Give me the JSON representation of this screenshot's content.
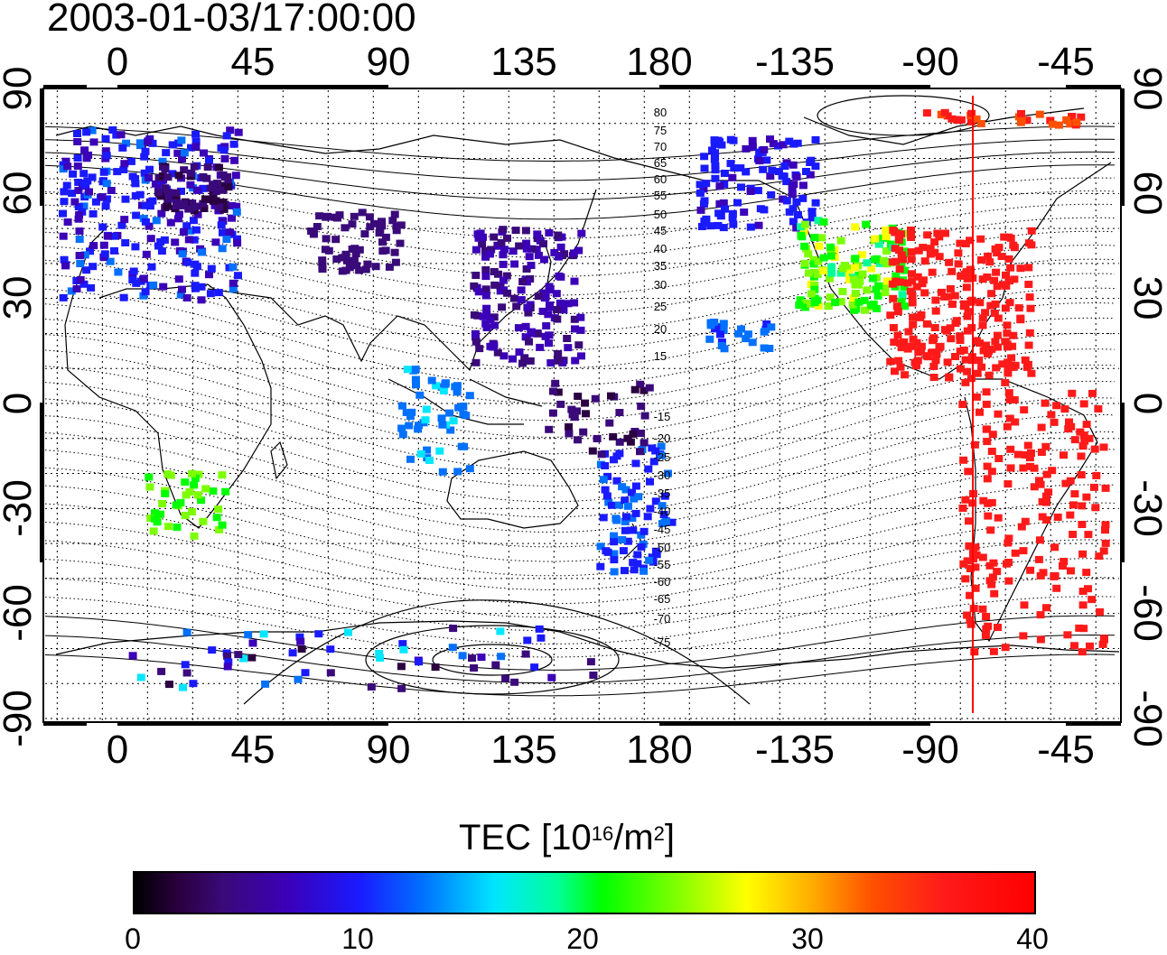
{
  "title": "2003-01-03/17:00:00",
  "map": {
    "lon_labels": [
      "0",
      "45",
      "90",
      "135",
      "180",
      "-135",
      "-90",
      "-45"
    ],
    "lat_labels": [
      "90",
      "60",
      "30",
      "0",
      "-30",
      "-60",
      "-90"
    ],
    "contour_labels_north": [
      "80",
      "75",
      "70",
      "65",
      "60",
      "55",
      "50",
      "45",
      "40",
      "35",
      "30",
      "25",
      "20",
      "15"
    ],
    "contour_labels_south": [
      "-15",
      "-20",
      "-25",
      "-30",
      "-35",
      "-40",
      "-45",
      "-50",
      "-55",
      "-60",
      "-65",
      "-70",
      "-75"
    ],
    "terminator_color": "#ff0000"
  },
  "colorbar": {
    "label_prefix": "TEC  [10",
    "label_exp": "16",
    "label_mid": "/m",
    "label_exp2": "2",
    "label_suffix": "]",
    "min": 0,
    "max": 40,
    "ticks": [
      "0",
      "10",
      "20",
      "30",
      "40"
    ]
  }
}
